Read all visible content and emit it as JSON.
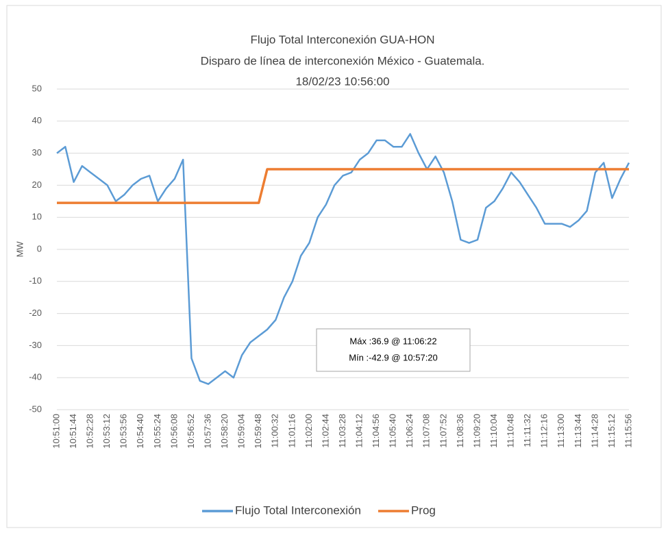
{
  "chart_data": {
    "type": "line",
    "title": [
      "Flujo Total Interconexión GUA-HON",
      "Disparo de línea de interconexión México - Guatemala.",
      "18/02/23 10:56:00"
    ],
    "y_label": "MW",
    "categories": [
      "10:51:00",
      null,
      "10:51:44",
      null,
      "10:52:28",
      null,
      "10:53:12",
      null,
      "10:53:56",
      null,
      "10:54:40",
      null,
      "10:55:24",
      null,
      "10:56:08",
      null,
      "10:56:52",
      null,
      "10:57:36",
      null,
      "10:58:20",
      null,
      "10:59:04",
      null,
      "10:59:48",
      null,
      "11:00:32",
      null,
      "11:01:16",
      null,
      "11:02:00",
      null,
      "11:02:44",
      null,
      "11:03:28",
      null,
      "11:04:12",
      null,
      "11:04:56",
      null,
      "11:05:40",
      null,
      "11:06:24",
      null,
      "11:07:08",
      null,
      "11:07:52",
      null,
      "11:08:36",
      null,
      "11:09:20",
      null,
      "11:10:04",
      null,
      "11:10:48",
      null,
      "11:11:32",
      null,
      "11:12:16",
      null,
      "11:13:00",
      null,
      "11:13:44",
      null,
      "11:14:28",
      null,
      "11:15:12",
      null,
      "11:15:56"
    ],
    "series": [
      {
        "name": "Flujo Total Interconexión",
        "color": "#5b9bd5",
        "values": [
          30,
          32,
          21,
          26,
          24,
          22,
          20,
          15,
          17,
          20,
          22,
          23,
          15,
          19,
          22,
          28,
          -34,
          -41,
          -42,
          -40,
          -38,
          -40,
          -33,
          -29,
          -27,
          -25,
          -22,
          -15,
          -10,
          -2,
          2,
          10,
          14,
          20,
          23,
          24,
          28,
          30,
          34,
          34,
          32,
          32,
          36,
          30,
          25,
          29,
          24,
          15,
          3,
          2,
          3,
          13,
          15,
          19,
          24,
          21,
          17,
          13,
          8,
          8,
          8,
          7,
          9,
          12,
          24,
          27,
          16,
          22,
          27
        ]
      },
      {
        "name": "Prog",
        "color": "#ed7d31",
        "values": [
          14.5,
          14.5,
          14.5,
          14.5,
          14.5,
          14.5,
          14.5,
          14.5,
          14.5,
          14.5,
          14.5,
          14.5,
          14.5,
          14.5,
          14.5,
          14.5,
          14.5,
          14.5,
          14.5,
          14.5,
          14.5,
          14.5,
          14.5,
          14.5,
          14.5,
          25,
          25,
          25,
          25,
          25,
          25,
          25,
          25,
          25,
          25,
          25,
          25,
          25,
          25,
          25,
          25,
          25,
          25,
          25,
          25,
          25,
          25,
          25,
          25,
          25,
          25,
          25,
          25,
          25,
          25,
          25,
          25,
          25,
          25,
          25,
          25,
          25,
          25,
          25,
          25,
          25,
          25,
          25,
          25
        ]
      }
    ],
    "annotations": [
      "Máx :36.9 @ 11:06:22",
      "Mín :-42.9 @ 10:57:20"
    ],
    "ylim": [
      -50,
      50
    ],
    "yticks": [
      -50,
      -40,
      -30,
      -20,
      -10,
      0,
      10,
      20,
      30,
      40,
      50
    ],
    "grid": true,
    "legend": "bottom"
  }
}
